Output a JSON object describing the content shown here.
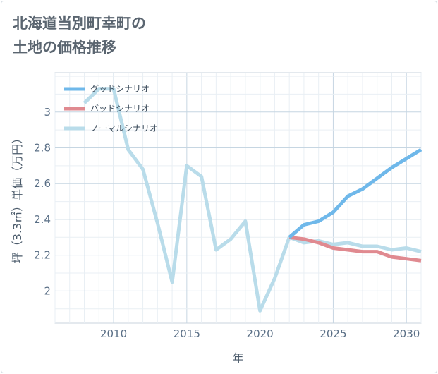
{
  "page": {
    "title_line1": "北海道当別町幸町の",
    "title_line2": "土地の価格推移"
  },
  "chart_data": {
    "type": "line",
    "xlabel": "年",
    "ylabel": "坪（3.3㎡）単価（万円）",
    "xlim": [
      2006,
      2031
    ],
    "ylim": [
      1.82,
      3.22
    ],
    "xticks": [
      2010,
      2015,
      2020,
      2025,
      2030
    ],
    "yticks": [
      2,
      2.2,
      2.4,
      2.6,
      2.8,
      3
    ],
    "ytick_labels": [
      "2",
      "2.2",
      "2.4",
      "2.6",
      "2.8",
      "3"
    ],
    "grid": true,
    "legend_position": "top-left",
    "series": [
      {
        "name": "グッドシナリオ",
        "color": "#6fb8ea",
        "x": [
          2022,
          2023,
          2024,
          2025,
          2026,
          2027,
          2028,
          2029,
          2030,
          2031
        ],
        "y": [
          2.3,
          2.37,
          2.39,
          2.44,
          2.53,
          2.57,
          2.63,
          2.69,
          2.74,
          2.79
        ]
      },
      {
        "name": "バッドシナリオ",
        "color": "#e08a90",
        "x": [
          2022,
          2023,
          2024,
          2025,
          2026,
          2027,
          2028,
          2029,
          2030,
          2031
        ],
        "y": [
          2.3,
          2.29,
          2.27,
          2.24,
          2.23,
          2.22,
          2.22,
          2.19,
          2.18,
          2.17
        ]
      },
      {
        "name": "ノーマルシナリオ",
        "color": "#b9dcea",
        "x": [
          2008,
          2009,
          2010,
          2011,
          2012,
          2013,
          2014,
          2015,
          2016,
          2017,
          2018,
          2019,
          2020,
          2021,
          2022,
          2023,
          2024,
          2025,
          2026,
          2027,
          2028,
          2029,
          2030,
          2031
        ],
        "y": [
          3.05,
          3.13,
          3.13,
          2.79,
          2.68,
          2.38,
          2.05,
          2.7,
          2.64,
          2.23,
          2.29,
          2.39,
          1.89,
          2.07,
          2.3,
          2.27,
          2.28,
          2.26,
          2.27,
          2.25,
          2.25,
          2.23,
          2.24,
          2.22
        ]
      }
    ]
  }
}
